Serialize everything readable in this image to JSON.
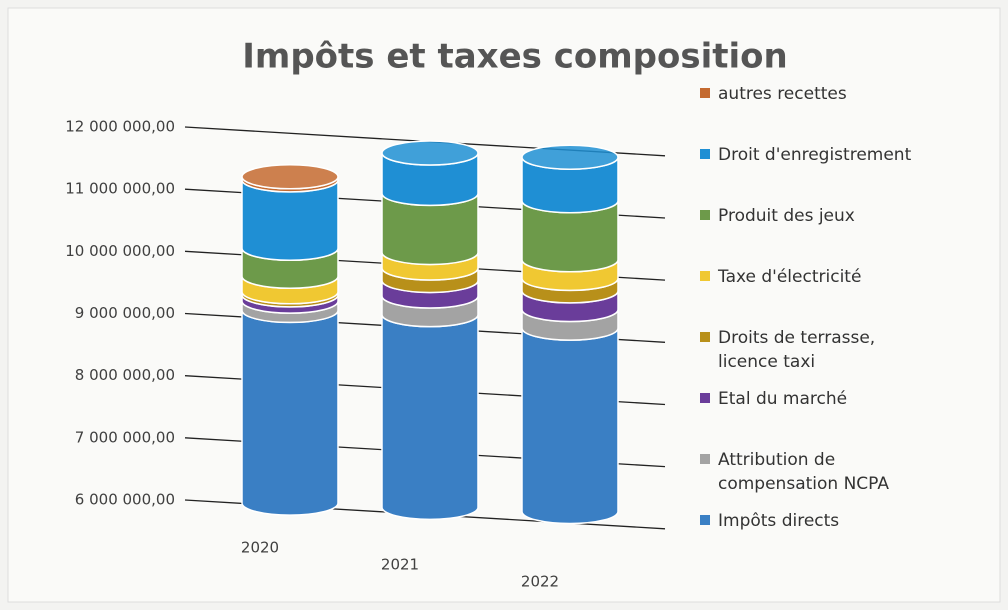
{
  "chart_data": {
    "type": "bar3d",
    "title": "Impôts et taxes composition",
    "categories": [
      "2020",
      "2021",
      "2022"
    ],
    "ylim": [
      6000000,
      12000000
    ],
    "yticks": [
      {
        "value": 6000000,
        "label": "6 000 000,00"
      },
      {
        "value": 7000000,
        "label": "7 000 000,00"
      },
      {
        "value": 8000000,
        "label": "8 000 000,00"
      },
      {
        "value": 9000000,
        "label": "9 000 000,00"
      },
      {
        "value": 10000000,
        "label": "10 000 000,00"
      },
      {
        "value": 11000000,
        "label": "11 000 000,00"
      },
      {
        "value": 12000000,
        "label": "12 000 000,00"
      }
    ],
    "grid": true,
    "stacked": true,
    "legend": "right",
    "series": [
      {
        "name": "Impôts directs",
        "color": "#3a7fc4",
        "values": [
          9100000,
          9100000,
          8950000
        ]
      },
      {
        "name": "Attribution de compensation NCPA",
        "color": "#a3a3a3",
        "values": [
          150000,
          300000,
          300000
        ]
      },
      {
        "name": "Etal du marché",
        "color": "#6a3d9a",
        "values": [
          100000,
          250000,
          300000
        ]
      },
      {
        "name": "Droits de terrasse, licence taxi",
        "color": "#b8901a",
        "values": [
          50000,
          200000,
          200000
        ]
      },
      {
        "name": "Taxe d'électricité",
        "color": "#f0c832",
        "values": [
          250000,
          250000,
          300000
        ]
      },
      {
        "name": "Produit des jeux",
        "color": "#6d9a4a",
        "values": [
          450000,
          950000,
          950000
        ]
      },
      {
        "name": "Droit d'enregistrement",
        "color": "#1f8fd4",
        "values": [
          1100000,
          650000,
          700000
        ]
      },
      {
        "name": "autres recettes",
        "color": "#c46a30",
        "values": [
          50000,
          0,
          0
        ]
      }
    ]
  }
}
